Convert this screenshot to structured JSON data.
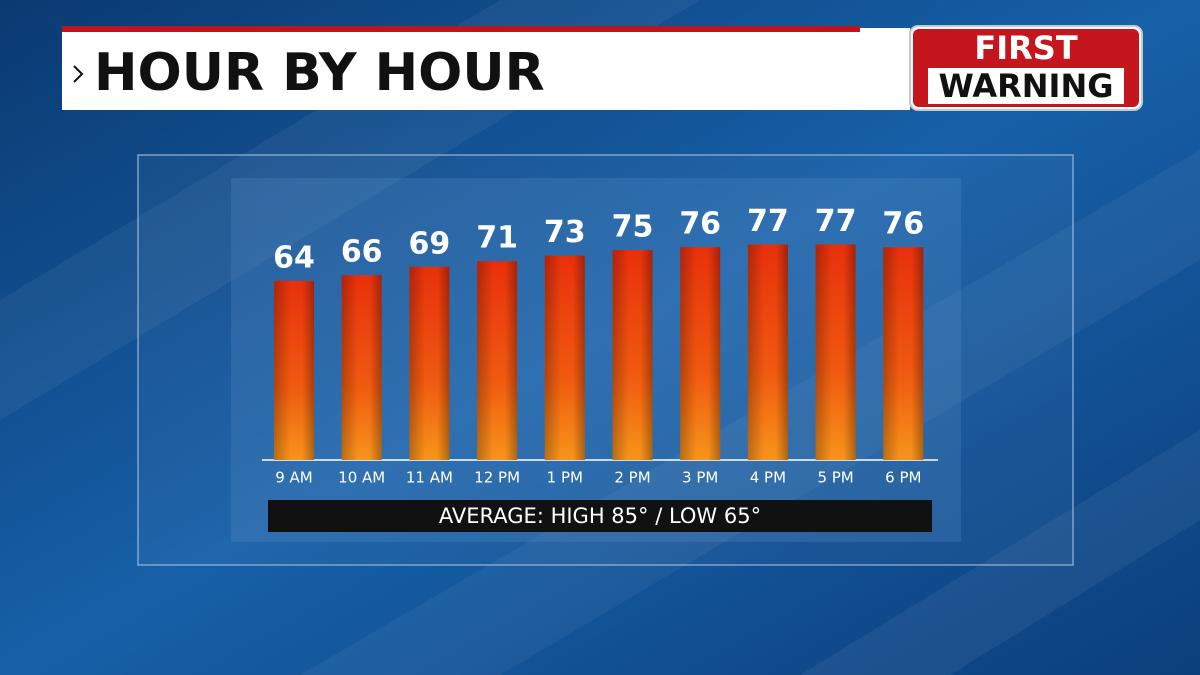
{
  "chart_data": {
    "type": "bar",
    "title": "HOUR BY HOUR",
    "badge": [
      "FIRST",
      "WARNING"
    ],
    "categories": [
      "9 AM",
      "10 AM",
      "11 AM",
      "12 PM",
      "1 PM",
      "2 PM",
      "3 PM",
      "4 PM",
      "5 PM",
      "6 PM"
    ],
    "values": [
      64,
      66,
      69,
      71,
      73,
      75,
      76,
      77,
      77,
      76
    ],
    "footer": "AVERAGE: HIGH 85° /  LOW  65°"
  }
}
